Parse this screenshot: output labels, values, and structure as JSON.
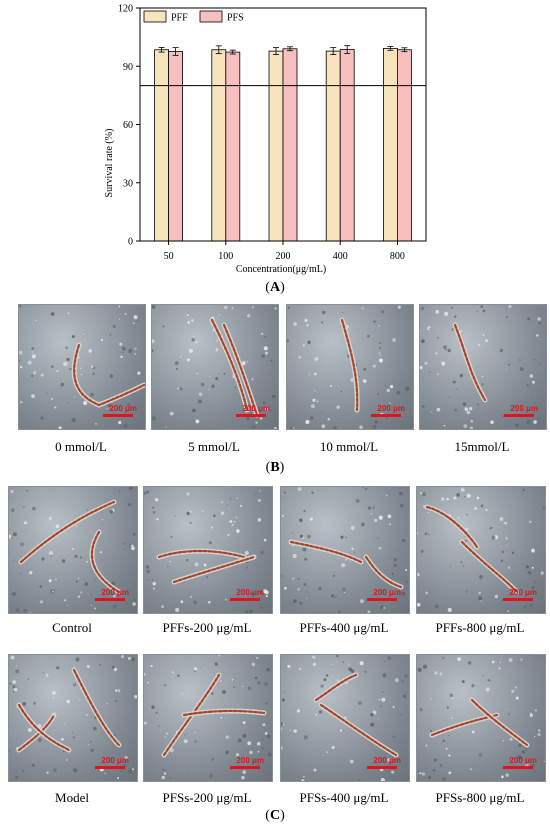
{
  "chart_data": {
    "type": "bar",
    "categories": [
      "50",
      "100",
      "200",
      "400",
      "800"
    ],
    "series": [
      {
        "name": "PFF",
        "color": "#f8e4bc",
        "values": [
          98.5,
          98.5,
          97.8,
          97.8,
          99.2
        ],
        "errors": [
          1.2,
          2.0,
          1.8,
          1.8,
          1.0
        ]
      },
      {
        "name": "PFS",
        "color": "#f8bfc0",
        "values": [
          97.6,
          97.3,
          99.0,
          98.6,
          98.5
        ],
        "errors": [
          2.0,
          1.0,
          1.0,
          2.0,
          1.0
        ]
      }
    ],
    "title": "",
    "xlabel": "Concentration(μg/mL)",
    "ylabel": "Survival rate (%)",
    "ylim": [
      0,
      120
    ],
    "yticks": [
      "0",
      "30",
      "60",
      "90",
      "120"
    ],
    "reference_line": 80,
    "legend": "top-left"
  },
  "panels": {
    "a_label": "A",
    "b_label": "B",
    "c_label": "C"
  },
  "scale_label": "200 μm",
  "b_captions": [
    "0 mmol/L",
    "5 mmol/L",
    "10 mmol/L",
    "15mmol/L"
  ],
  "c_row1_captions": [
    "Control",
    "PFFs-200 μg/mL",
    "PFFs-400 μg/mL",
    "PFFs-800 μg/mL"
  ],
  "c_row2_captions": [
    "Model",
    "PFSs-200 μg/mL",
    "PFSs-400 μg/mL",
    "PFSs-800 μg/mL"
  ]
}
